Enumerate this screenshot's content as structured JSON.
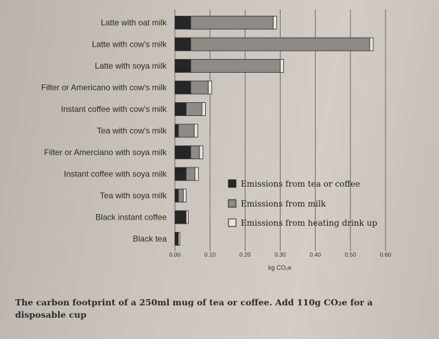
{
  "chart_data": {
    "type": "bar",
    "orientation": "horizontal",
    "stacked": true,
    "categories": [
      "Latte with oat milk",
      "Latte with cow's milk",
      "Latte with soya milk",
      "Filter or Americano with cow's milk",
      "Instant coffee with cow's milk",
      "Tea with cow's milk",
      "Filter or Amerciano with soya milk",
      "Instant coffee with soya milk",
      "Tea with soya milk",
      "Black instant coffee",
      "Black tea"
    ],
    "series": [
      {
        "name": "Emissions from tea or coffee",
        "color": "#262626",
        "values": [
          0.045,
          0.045,
          0.045,
          0.045,
          0.032,
          0.01,
          0.045,
          0.032,
          0.01,
          0.032,
          0.01
        ]
      },
      {
        "name": "Emissions from milk",
        "color": "#8e8a86",
        "values": [
          0.235,
          0.51,
          0.255,
          0.05,
          0.045,
          0.045,
          0.025,
          0.025,
          0.014,
          0.0,
          0.0
        ]
      },
      {
        "name": "Emissions from heating drink up",
        "color": "#e8e4dc",
        "values": [
          0.01,
          0.01,
          0.01,
          0.01,
          0.01,
          0.01,
          0.01,
          0.01,
          0.008,
          0.006,
          0.004
        ]
      }
    ],
    "xlabel": "kg CO₂e",
    "ylabel": "",
    "xlim": [
      0,
      0.6
    ],
    "xticks": [
      "0.00",
      "0.10",
      "0.20",
      "0.30",
      "0.40",
      "0.50",
      "0.60"
    ],
    "grid": true,
    "legend_position": "bottom-right"
  },
  "caption": "The carbon footprint of a 250ml mug of tea or coffee. Add 110g CO₂e for a disposable cup"
}
